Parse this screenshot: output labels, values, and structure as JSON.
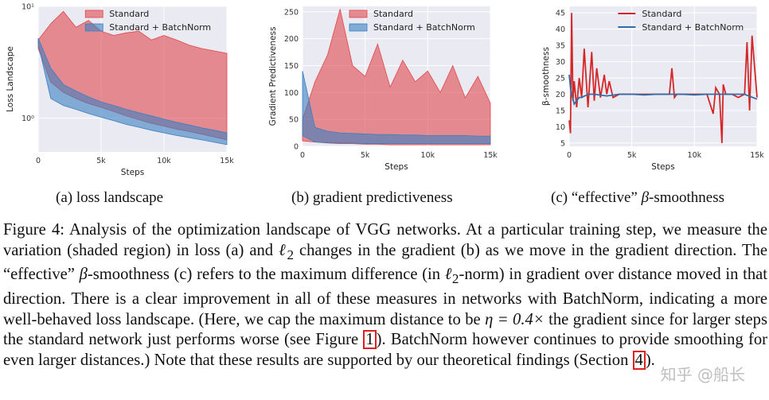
{
  "chart_data": [
    {
      "type": "area",
      "id": "loss",
      "xlabel": "Steps",
      "ylabel": "Loss Landscape",
      "yscale": "log",
      "xlim": [
        0,
        15000
      ],
      "ylim": [
        0.5,
        10
      ],
      "xticks": [
        0,
        5000,
        10000,
        15000
      ],
      "xtick_labels": [
        "0",
        "5k",
        "10k",
        "15k"
      ],
      "yticks": [
        1,
        10
      ],
      "ytick_labels": [
        "10⁰",
        "10¹"
      ],
      "grid": true,
      "legend_position": "top-right",
      "series": [
        {
          "name": "Standard",
          "color": "#e0474c",
          "x": [
            0,
            1000,
            2000,
            3000,
            4000,
            5000,
            6000,
            7000,
            8000,
            9000,
            10000,
            11000,
            12000,
            13000,
            14000,
            15000
          ],
          "lower": [
            4.2,
            2.1,
            1.7,
            1.5,
            1.35,
            1.25,
            1.15,
            1.05,
            0.97,
            0.9,
            0.85,
            0.8,
            0.76,
            0.72,
            0.68,
            0.64
          ],
          "upper": [
            5.0,
            7.0,
            9.0,
            6.5,
            7.5,
            6.0,
            5.5,
            5.8,
            6.0,
            5.0,
            5.5,
            5.0,
            4.5,
            4.2,
            4.0,
            3.8
          ]
        },
        {
          "name": "Standard + BatchNorm",
          "color": "#3a7fc1",
          "x": [
            0,
            1000,
            2000,
            3000,
            4000,
            5000,
            6000,
            7000,
            8000,
            9000,
            10000,
            11000,
            12000,
            13000,
            14000,
            15000
          ],
          "lower": [
            4.6,
            1.5,
            1.3,
            1.2,
            1.1,
            1.02,
            0.95,
            0.88,
            0.83,
            0.78,
            0.74,
            0.7,
            0.67,
            0.64,
            0.61,
            0.58
          ],
          "upper": [
            5.2,
            2.8,
            2.0,
            1.75,
            1.55,
            1.4,
            1.3,
            1.2,
            1.12,
            1.05,
            0.98,
            0.92,
            0.87,
            0.82,
            0.78,
            0.74
          ]
        }
      ]
    },
    {
      "type": "area",
      "id": "gradient",
      "xlabel": "Steps",
      "ylabel": "Gradient Predictiveness",
      "xlim": [
        0,
        15000
      ],
      "ylim": [
        0,
        260
      ],
      "xticks": [
        0,
        5000,
        10000,
        15000
      ],
      "xtick_labels": [
        "0",
        "5k",
        "10k",
        "15k"
      ],
      "yticks": [
        0,
        50,
        100,
        150,
        200,
        250
      ],
      "grid": true,
      "legend_position": "top-right",
      "series": [
        {
          "name": "Standard",
          "color": "#e0474c",
          "x": [
            0,
            1000,
            2000,
            3000,
            4000,
            5000,
            6000,
            7000,
            8000,
            9000,
            10000,
            11000,
            12000,
            13000,
            14000,
            15000
          ],
          "lower": [
            10,
            8,
            6,
            5,
            5,
            4,
            4,
            3,
            3,
            3,
            3,
            3,
            3,
            3,
            3,
            3
          ],
          "upper": [
            50,
            120,
            170,
            255,
            150,
            130,
            190,
            110,
            160,
            120,
            140,
            100,
            150,
            90,
            130,
            80
          ]
        },
        {
          "name": "Standard + BatchNorm",
          "color": "#3a7fc1",
          "x": [
            0,
            1000,
            2000,
            3000,
            4000,
            5000,
            6000,
            7000,
            8000,
            9000,
            10000,
            11000,
            12000,
            13000,
            14000,
            15000
          ],
          "lower": [
            20,
            8,
            7,
            6,
            6,
            5,
            5,
            5,
            5,
            5,
            5,
            5,
            5,
            5,
            5,
            5
          ],
          "upper": [
            140,
            35,
            28,
            25,
            24,
            23,
            22,
            22,
            21,
            21,
            20,
            20,
            20,
            20,
            19,
            19
          ]
        }
      ]
    },
    {
      "type": "line",
      "id": "smoothness",
      "xlabel": "Steps",
      "ylabel": "β-smoothness",
      "xlim": [
        0,
        15000
      ],
      "ylim": [
        4,
        47
      ],
      "xticks": [
        0,
        5000,
        10000,
        15000
      ],
      "xtick_labels": [
        "0",
        "5k",
        "10k",
        "15k"
      ],
      "yticks": [
        5,
        10,
        15,
        20,
        25,
        30,
        35,
        40,
        45
      ],
      "grid": true,
      "legend_position": "top-right",
      "series": [
        {
          "name": "Standard",
          "color": "#d62728",
          "x": [
            0,
            100,
            200,
            300,
            400,
            600,
            800,
            1000,
            1200,
            1500,
            1800,
            2000,
            2200,
            2500,
            2800,
            3000,
            3200,
            3500,
            4000,
            5000,
            6000,
            7000,
            8000,
            8200,
            8400,
            8600,
            9000,
            10000,
            11000,
            11500,
            11700,
            12000,
            12200,
            12300,
            12500,
            13000,
            13500,
            14000,
            14200,
            14400,
            14600,
            15000
          ],
          "y": [
            12,
            8,
            45,
            18,
            24,
            16,
            25,
            19,
            34,
            16,
            33,
            18,
            28,
            19,
            26,
            20,
            24,
            19,
            20,
            20,
            20,
            20,
            20,
            28,
            19,
            20,
            20,
            20,
            20,
            14,
            22,
            20,
            5,
            23,
            20,
            20,
            19,
            20,
            36,
            15,
            38,
            19
          ]
        },
        {
          "name": "Standard + BatchNorm",
          "color": "#2f6ea8",
          "x": [
            0,
            100,
            200,
            400,
            600,
            800,
            1000,
            1500,
            2000,
            3000,
            4000,
            5000,
            6000,
            7000,
            8000,
            9000,
            10000,
            11000,
            12000,
            13000,
            14000,
            15000
          ],
          "y": [
            26,
            22,
            20,
            17,
            18,
            19,
            19,
            20,
            20,
            19.5,
            20,
            20,
            19.8,
            20,
            20,
            20,
            19.8,
            20,
            20,
            20,
            20,
            18.5
          ]
        }
      ]
    }
  ],
  "subcaptions": {
    "a": "(a) loss landscape",
    "b": "(b) gradient predictiveness",
    "c_pre": "(c) “effective”",
    "c_beta": "β",
    "c_post": "-smoothness"
  },
  "caption": {
    "p1": "Figure 4: Analysis of the optimization landscape of VGG networks. At a particular training step, we measure the variation (shaded region) in loss (a) and ",
    "ell": "ℓ",
    "sub2": "2",
    "p2": " changes in the gradient (b) as we move in the gradient direction. The “effective” ",
    "beta": "β",
    "p3": "-smoothness (c) refers to the maximum difference (in ",
    "p4": "-norm) in gradient over distance moved in that direction. There is a clear improvement in all of these measures in networks with BatchNorm, indicating a more well-behaved loss landscape. (Here, we cap the maximum distance to be ",
    "eta": "η = 0.4×",
    "p5": " the gradient since for larger steps the standard network just performs worse (see Figure ",
    "ref_fig": "1",
    "p6": "). BatchNorm however continues to provide smoothing for even larger distances.) Note that these results are supported by our theoretical findings (Section ",
    "ref_sec": "4",
    "p7": ")."
  },
  "watermark": "知乎 @船长"
}
